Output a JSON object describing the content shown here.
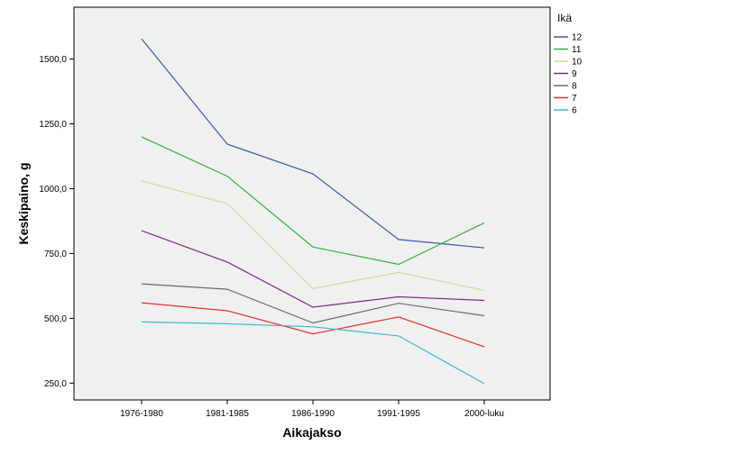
{
  "chart_data": {
    "type": "line",
    "xlabel": "Aikajakso",
    "ylabel": "Keskipaino, g",
    "categories": [
      "1976-1980",
      "1981-1985",
      "1986-1990",
      "1991-1995",
      "2000-luku"
    ],
    "ylim": [
      185,
      1700
    ],
    "yticks": [
      250,
      500,
      750,
      1000,
      1250,
      1500
    ],
    "ytick_labels": [
      "250,0",
      "500,0",
      "750,0",
      "1000,0",
      "1250,0",
      "1500,0"
    ],
    "grid": false,
    "plot_background": "#f0f0f0",
    "legend": {
      "title": "Ikä",
      "placement": "right"
    },
    "series": [
      {
        "name": "12",
        "color": "#3a5ba9",
        "values": [
          1578,
          1172,
          1057,
          804,
          772
        ]
      },
      {
        "name": "11",
        "color": "#2db33c",
        "values": [
          1200,
          1048,
          775,
          708,
          868
        ]
      },
      {
        "name": "10",
        "color": "#d9d5a0",
        "values": [
          1030,
          942,
          615,
          677,
          608
        ]
      },
      {
        "name": "9",
        "color": "#7d2a80",
        "values": [
          838,
          717,
          543,
          583,
          569
        ]
      },
      {
        "name": "8",
        "color": "#6b6b6b",
        "values": [
          633,
          612,
          482,
          558,
          510
        ]
      },
      {
        "name": "7",
        "color": "#e8322c",
        "values": [
          560,
          529,
          440,
          505,
          390
        ]
      },
      {
        "name": "6",
        "color": "#3cbcc8",
        "values": [
          486,
          479,
          467,
          432,
          248
        ]
      }
    ]
  }
}
